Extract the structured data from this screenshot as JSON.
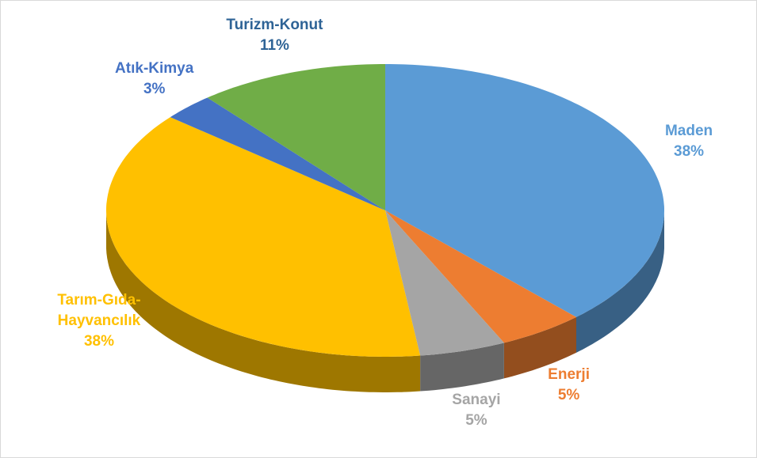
{
  "chart_data": {
    "type": "pie3d",
    "categories": [
      "Maden",
      "Enerji",
      "Sanayi",
      "Tarım-Gıda-Hayvancılık",
      "Atık-Kimya",
      "Turizm-Konut"
    ],
    "values": [
      38,
      5,
      5,
      38,
      3,
      11
    ],
    "value_labels": [
      "38%",
      "5%",
      "5%",
      "38%",
      "3%",
      "11%"
    ],
    "colors": [
      "#5b9bd5",
      "#ed7d31",
      "#a5a5a5",
      "#ffc000",
      "#4472c4",
      "#70ad47"
    ],
    "label_colors": [
      "#5b9bd5",
      "#ed7d31",
      "#a5a5a5",
      "#ffc000",
      "#4472c4",
      "#2e6396"
    ]
  }
}
